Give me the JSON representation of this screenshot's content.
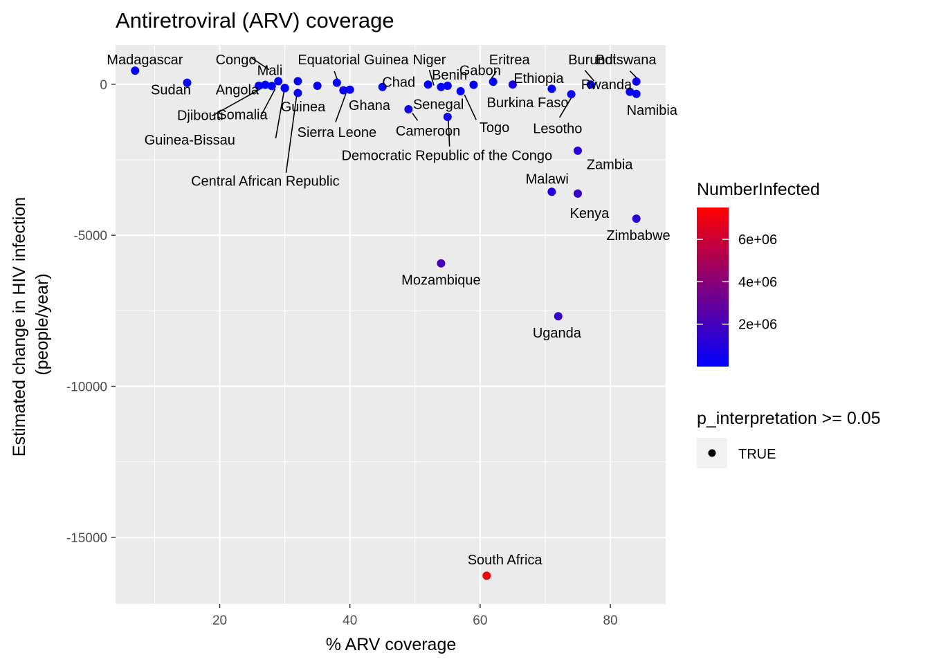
{
  "chart_data": {
    "type": "scatter",
    "title": "Antiretroviral (ARV) coverage",
    "xlabel": "% ARV coverage",
    "ylabel": [
      "Estimated change in HIV infection",
      "(people/year)"
    ],
    "xlim": [
      4,
      88.5
    ],
    "ylim": [
      -17200,
      1300
    ],
    "x_ticks": [
      20,
      40,
      60,
      80
    ],
    "y_ticks": [
      0,
      -5000,
      -10000,
      -15000
    ],
    "grid": true,
    "legend_position": "right",
    "color_legend": {
      "title": "NumberInfected",
      "low_color": "#0000FF",
      "high_color": "#FF0000",
      "range": [
        0,
        7500000
      ],
      "ticks": [
        2000000,
        4000000,
        6000000
      ],
      "tick_labels": [
        "2e+06",
        "4e+06",
        "6e+06"
      ]
    },
    "shape_legend": {
      "title": "p_interpretation >= 0.05",
      "entries": [
        "TRUE"
      ]
    },
    "points": [
      {
        "country": "Madagascar",
        "x": 7,
        "y": 450,
        "infected": 30000
      },
      {
        "country": "Sudan",
        "x": 15,
        "y": 50,
        "infected": 60000
      },
      {
        "country": "Congo",
        "x": 29,
        "y": 100,
        "infected": 80000
      },
      {
        "country": "Mali",
        "x": 27,
        "y": -20,
        "infected": 100000
      },
      {
        "country": "Angola",
        "x": 26,
        "y": -50,
        "infected": 250000
      },
      {
        "country": "Djibouti",
        "x": 28,
        "y": -60,
        "infected": 10000
      },
      {
        "country": "Somalia",
        "x": 30,
        "y": -120,
        "infected": 30000
      },
      {
        "country": "Guinea-Bissau",
        "x": 30,
        "y": -130,
        "infected": 40000
      },
      {
        "country": "Guinea",
        "x": 32,
        "y": 100,
        "infected": 120000
      },
      {
        "country": "Central African Republic",
        "x": 32,
        "y": -290,
        "infected": 120000
      },
      {
        "country": "Sierra Leone",
        "x": 35,
        "y": -50,
        "infected": 60000
      },
      {
        "country": "Equatorial Guinea",
        "x": 38,
        "y": 50,
        "infected": 40000
      },
      {
        "country": "Ghana",
        "x": 39,
        "y": -200,
        "infected": 250000
      },
      {
        "country": "Ghana-2",
        "x": 40,
        "y": -180,
        "infected": 200000
      },
      {
        "country": "Chad",
        "x": 45,
        "y": -90,
        "infected": 120000
      },
      {
        "country": "Cameroon",
        "x": 49,
        "y": -830,
        "infected": 600000
      },
      {
        "country": "Niger",
        "x": 52,
        "y": -10,
        "infected": 50000
      },
      {
        "country": "Benin",
        "x": 54,
        "y": -90,
        "infected": 80000
      },
      {
        "country": "Senegal",
        "x": 55,
        "y": -50,
        "infected": 40000
      },
      {
        "country": "Democratic Republic of the Congo",
        "x": 55,
        "y": -1080,
        "infected": 450000
      },
      {
        "country": "Gabon",
        "x": 59,
        "y": -20,
        "infected": 60000
      },
      {
        "country": "Togo",
        "x": 57,
        "y": -230,
        "infected": 120000
      },
      {
        "country": "Eritrea",
        "x": 62,
        "y": 80,
        "infected": 20000
      },
      {
        "country": "Ethiopia",
        "x": 65,
        "y": -10,
        "infected": 700000
      },
      {
        "country": "Burkina Faso",
        "x": 71,
        "y": -150,
        "infected": 100000
      },
      {
        "country": "Lesotho",
        "x": 74,
        "y": -330,
        "infected": 320000
      },
      {
        "country": "Burundi",
        "x": 77,
        "y": -10,
        "infected": 80000
      },
      {
        "country": "Botswana",
        "x": 84,
        "y": 90,
        "infected": 380000
      },
      {
        "country": "Rwanda",
        "x": 83,
        "y": -250,
        "infected": 220000
      },
      {
        "country": "Namibia",
        "x": 84,
        "y": -320,
        "infected": 230000
      },
      {
        "country": "Zambia",
        "x": 75,
        "y": -2200,
        "infected": 1200000
      },
      {
        "country": "Malawi",
        "x": 71,
        "y": -3560,
        "infected": 1000000
      },
      {
        "country": "Kenya",
        "x": 75,
        "y": -3620,
        "infected": 1600000
      },
      {
        "country": "Zimbabwe",
        "x": 84,
        "y": -4450,
        "infected": 1300000
      },
      {
        "country": "Mozambique",
        "x": 54,
        "y": -5930,
        "infected": 2100000
      },
      {
        "country": "Uganda",
        "x": 72,
        "y": -7680,
        "infected": 1500000
      },
      {
        "country": "South Africa",
        "x": 61,
        "y": -16270,
        "infected": 7100000
      }
    ],
    "labels": [
      {
        "text": "Madagascar",
        "x": 8.5,
        "y": 820
      },
      {
        "text": "Sudan",
        "x": 12.5,
        "y": -180
      },
      {
        "text": "Congo",
        "x": 22.5,
        "y": 820
      },
      {
        "text": "Mali",
        "x": 27.7,
        "y": 470
      },
      {
        "text": "Angola",
        "x": 22.7,
        "y": -180
      },
      {
        "text": "Djibouti",
        "x": 17.0,
        "y": -1020
      },
      {
        "text": "Somalia",
        "x": 23.5,
        "y": -1000
      },
      {
        "text": "Guinea-Bissau",
        "x": 15.4,
        "y": -1840
      },
      {
        "text": "Guinea",
        "x": 32.8,
        "y": -740
      },
      {
        "text": "Central African Republic",
        "x": 27.0,
        "y": -3200
      },
      {
        "text": "Sierra Leone",
        "x": 38.0,
        "y": -1580
      },
      {
        "text": "Equatorial Guinea",
        "x": 40.5,
        "y": 820
      },
      {
        "text": "Ghana",
        "x": 43.0,
        "y": -690
      },
      {
        "text": "Chad",
        "x": 47.5,
        "y": 80
      },
      {
        "text": "Cameroon",
        "x": 52.0,
        "y": -1540
      },
      {
        "text": "Niger",
        "x": 52.2,
        "y": 820
      },
      {
        "text": "Benin",
        "x": 55.3,
        "y": 320
      },
      {
        "text": "Gabon",
        "x": 60.0,
        "y": 470
      },
      {
        "text": "Senegal",
        "x": 53.6,
        "y": -660
      },
      {
        "text": "Democratic Republic of the Congo",
        "x": 54.9,
        "y": -2350
      },
      {
        "text": "Togo",
        "x": 62.2,
        "y": -1420
      },
      {
        "text": "Eritrea",
        "x": 64.5,
        "y": 820
      },
      {
        "text": "Ethiopia",
        "x": 69.0,
        "y": 200
      },
      {
        "text": "Burkina Faso",
        "x": 67.3,
        "y": -600
      },
      {
        "text": "Lesotho",
        "x": 71.9,
        "y": -1460
      },
      {
        "text": "Burundi",
        "x": 77.2,
        "y": 820
      },
      {
        "text": "Botswana",
        "x": 82.4,
        "y": 820
      },
      {
        "text": "Rwanda",
        "x": 79.4,
        "y": -10
      },
      {
        "text": "Namibia",
        "x": 86.4,
        "y": -850
      },
      {
        "text": "Zambia",
        "x": 79.9,
        "y": -2650
      },
      {
        "text": "Malawi",
        "x": 70.3,
        "y": -3130
      },
      {
        "text": "Kenya",
        "x": 76.8,
        "y": -4260
      },
      {
        "text": "Zimbabwe",
        "x": 84.3,
        "y": -5000
      },
      {
        "text": "Mozambique",
        "x": 54.0,
        "y": -6470
      },
      {
        "text": "Uganda",
        "x": 71.8,
        "y": -8230
      },
      {
        "text": "South Africa",
        "x": 63.8,
        "y": -15740
      }
    ],
    "segments": [
      {
        "x1": 24.9,
        "y1": 870,
        "x2": 27.6,
        "y2": 480
      },
      {
        "x1": 18.8,
        "y1": -1050,
        "x2": 26.7,
        "y2": -100
      },
      {
        "x1": 26.3,
        "y1": -1060,
        "x2": 28.5,
        "y2": -160
      },
      {
        "x1": 28.6,
        "y1": -1790,
        "x2": 29.9,
        "y2": -210
      },
      {
        "x1": 30.2,
        "y1": -2930,
        "x2": 31.8,
        "y2": -400
      },
      {
        "x1": 37.6,
        "y1": 430,
        "x2": 38.1,
        "y2": 130
      },
      {
        "x1": 37.8,
        "y1": -1250,
        "x2": 39.4,
        "y2": -300
      },
      {
        "x1": 49.6,
        "y1": -960,
        "x2": 50.4,
        "y2": -1200
      },
      {
        "x1": 52.2,
        "y1": 470,
        "x2": 52.9,
        "y2": -40
      },
      {
        "x1": 55.1,
        "y1": -1130,
        "x2": 55.3,
        "y2": -2060
      },
      {
        "x1": 57.6,
        "y1": -350,
        "x2": 59.4,
        "y2": -1180
      },
      {
        "x1": 62.5,
        "y1": 430,
        "x2": 61.6,
        "y2": 150
      },
      {
        "x1": 74.0,
        "y1": -450,
        "x2": 72.2,
        "y2": -1100
      },
      {
        "x1": 76.1,
        "y1": 460,
        "x2": 77.5,
        "y2": 110
      },
      {
        "x1": 83.0,
        "y1": 440,
        "x2": 84.1,
        "y2": 200
      }
    ]
  }
}
